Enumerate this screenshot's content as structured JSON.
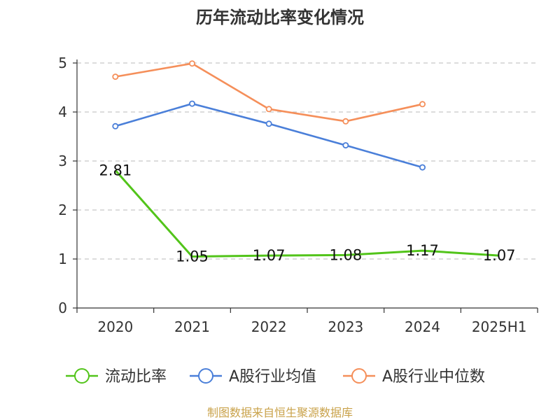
{
  "chart_data": {
    "type": "line",
    "title": "历年流动比率变化情况",
    "categories": [
      "2020",
      "2021",
      "2022",
      "2023",
      "2024",
      "2025H1"
    ],
    "ylim": [
      0,
      5
    ],
    "yticks": [
      "0",
      "1",
      "2",
      "3",
      "4",
      "5"
    ],
    "grid": true,
    "legend_position": "bottom",
    "series": [
      {
        "name": "流动比率",
        "color": "#52c41a",
        "values": [
          2.81,
          1.05,
          1.07,
          1.08,
          1.17,
          1.07
        ],
        "labels": [
          "2.81",
          "1.05",
          "1.07",
          "1.08",
          "1.17",
          "1.07"
        ]
      },
      {
        "name": "A股行业均值",
        "color": "#4a7fd9",
        "values": [
          3.71,
          4.17,
          3.76,
          3.32,
          2.87,
          null
        ]
      },
      {
        "name": "A股行业中位数",
        "color": "#f58f5a",
        "values": [
          4.72,
          4.99,
          4.06,
          3.81,
          4.16,
          null
        ]
      }
    ]
  },
  "source_text": "制图数据来自恒生聚源数据库"
}
